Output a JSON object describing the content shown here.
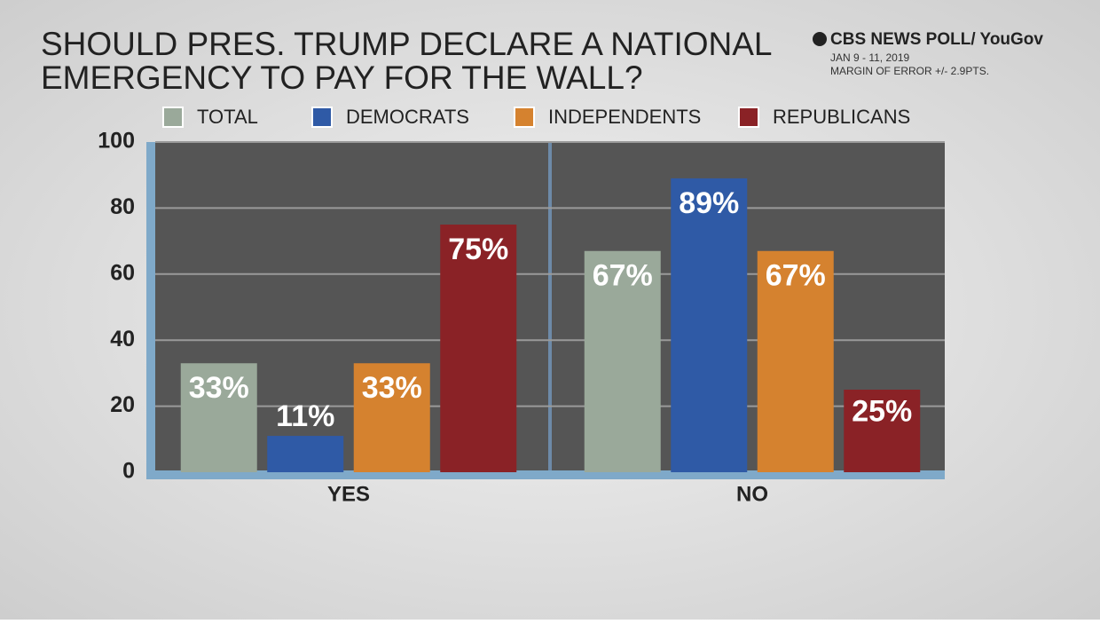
{
  "chart_data": {
    "type": "bar",
    "title": [
      "SHOULD PRES. TRUMP DECLARE A NATIONAL",
      "EMERGENCY TO PAY FOR THE WALL?"
    ],
    "source": {
      "brand": "CBS NEWS POLL/ YouGov",
      "dates": "JAN 9 - 11, 2019",
      "margin": "MARGIN OF ERROR +/- 2.9PTS."
    },
    "categories": [
      "YES",
      "NO"
    ],
    "series": [
      {
        "name": "TOTAL",
        "color": "#9aa99a",
        "values": [
          33,
          67
        ],
        "value_labels": [
          "33%",
          "67%"
        ]
      },
      {
        "name": "DEMOCRATS",
        "color": "#2f5aa6",
        "values": [
          11,
          89
        ],
        "value_labels": [
          "11%",
          "89%"
        ]
      },
      {
        "name": "INDEPENDENTS",
        "color": "#d5822f",
        "values": [
          33,
          67
        ],
        "value_labels": [
          "33%",
          "67%"
        ]
      },
      {
        "name": "REPUBLICANS",
        "color": "#8a2226",
        "values": [
          75,
          25
        ],
        "value_labels": [
          "75%",
          "25%"
        ]
      }
    ],
    "ylim": [
      0,
      100
    ],
    "yticks": [
      0,
      20,
      40,
      60,
      80,
      100
    ],
    "grid": true
  }
}
